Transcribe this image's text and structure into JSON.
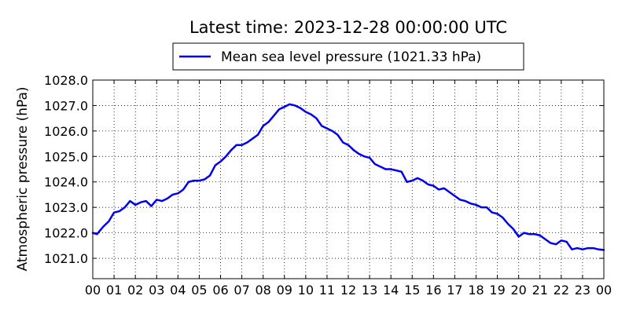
{
  "chart_data": {
    "type": "line",
    "title": "Latest time: 2023-12-28 00:00:00 UTC",
    "ylabel": "Atmospheric pressure (hPa)",
    "xlabel": "",
    "xlim": [
      0,
      24
    ],
    "ylim": [
      1020.2,
      1028.0
    ],
    "grid": true,
    "legend_position": "top",
    "x_tick_labels": [
      "00",
      "01",
      "02",
      "03",
      "04",
      "05",
      "06",
      "07",
      "08",
      "09",
      "10",
      "11",
      "12",
      "13",
      "14",
      "15",
      "16",
      "17",
      "18",
      "19",
      "20",
      "21",
      "22",
      "23",
      "00"
    ],
    "y_tick_values": [
      1021.0,
      1022.0,
      1023.0,
      1024.0,
      1025.0,
      1026.0,
      1027.0,
      1028.0
    ],
    "y_tick_labels": [
      "1021.0",
      "1022.0",
      "1023.0",
      "1024.0",
      "1025.0",
      "1026.0",
      "1027.0",
      "1028.0"
    ],
    "series": [
      {
        "name": "Mean sea level pressure (1021.33 hPa)",
        "color": "#0000ee",
        "x": [
          0,
          0.2,
          0.5,
          0.75,
          1.0,
          1.25,
          1.5,
          1.75,
          2.0,
          2.25,
          2.5,
          2.75,
          3.0,
          3.25,
          3.5,
          3.75,
          4.0,
          4.25,
          4.5,
          4.75,
          5.0,
          5.25,
          5.5,
          5.75,
          6.0,
          6.25,
          6.5,
          6.75,
          7.0,
          7.25,
          7.5,
          7.75,
          8.0,
          8.25,
          8.5,
          8.75,
          9.0,
          9.25,
          9.5,
          9.75,
          10.0,
          10.25,
          10.5,
          10.75,
          11.0,
          11.25,
          11.5,
          11.75,
          12.0,
          12.25,
          12.5,
          12.75,
          13.0,
          13.25,
          13.5,
          13.75,
          14.0,
          14.25,
          14.5,
          14.75,
          15.0,
          15.25,
          15.5,
          15.75,
          16.0,
          16.25,
          16.5,
          16.75,
          17.0,
          17.25,
          17.5,
          17.75,
          18.0,
          18.25,
          18.5,
          18.75,
          19.0,
          19.25,
          19.5,
          19.75,
          20.0,
          20.25,
          20.5,
          20.75,
          21.0,
          21.25,
          21.5,
          21.75,
          22.0,
          22.25,
          22.5,
          22.75,
          23.0,
          23.25,
          23.5,
          23.75,
          24.0
        ],
        "values": [
          1022.0,
          1021.95,
          1022.25,
          1022.45,
          1022.8,
          1022.85,
          1023.0,
          1023.25,
          1023.1,
          1023.2,
          1023.25,
          1023.05,
          1023.3,
          1023.25,
          1023.35,
          1023.5,
          1023.55,
          1023.7,
          1024.0,
          1024.05,
          1024.05,
          1024.1,
          1024.25,
          1024.65,
          1024.8,
          1025.0,
          1025.25,
          1025.45,
          1025.45,
          1025.55,
          1025.7,
          1025.85,
          1026.2,
          1026.35,
          1026.6,
          1026.85,
          1026.95,
          1027.05,
          1027.0,
          1026.9,
          1026.75,
          1026.65,
          1026.5,
          1026.2,
          1026.1,
          1026.0,
          1025.85,
          1025.55,
          1025.45,
          1025.25,
          1025.1,
          1025.0,
          1024.95,
          1024.7,
          1024.6,
          1024.5,
          1024.5,
          1024.45,
          1024.4,
          1024.0,
          1024.05,
          1024.15,
          1024.05,
          1023.9,
          1023.85,
          1023.7,
          1023.75,
          1023.6,
          1023.45,
          1023.3,
          1023.25,
          1023.15,
          1023.1,
          1023.0,
          1023.0,
          1022.8,
          1022.75,
          1022.6,
          1022.35,
          1022.15,
          1021.85,
          1022.0,
          1021.95,
          1021.95,
          1021.9,
          1021.75,
          1021.6,
          1021.55,
          1021.7,
          1021.65,
          1021.35,
          1021.4,
          1021.35,
          1021.4,
          1021.4,
          1021.35,
          1021.33
        ]
      }
    ]
  }
}
